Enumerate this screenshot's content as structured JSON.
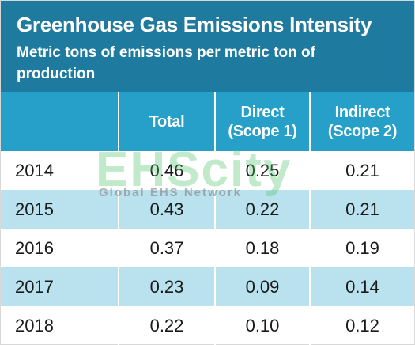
{
  "chart_data": {
    "type": "table",
    "title": "Greenhouse Gas Emissions Intensity",
    "subtitle": "Metric tons of emissions per metric ton of production",
    "columns": [
      {
        "label_lines": []
      },
      {
        "label_lines": [
          "Total"
        ]
      },
      {
        "label_lines": [
          "Direct",
          "(Scope 1)"
        ]
      },
      {
        "label_lines": [
          "Indirect",
          "(Scope 2)"
        ]
      }
    ],
    "rows": [
      {
        "year": "2014",
        "total": "0.46",
        "direct": "0.25",
        "indirect": "0.21"
      },
      {
        "year": "2015",
        "total": "0.43",
        "direct": "0.22",
        "indirect": "0.21"
      },
      {
        "year": "2016",
        "total": "0.37",
        "direct": "0.18",
        "indirect": "0.19"
      },
      {
        "year": "2017",
        "total": "0.23",
        "direct": "0.09",
        "indirect": "0.14"
      },
      {
        "year": "2018",
        "total": "0.22",
        "direct": "0.10",
        "indirect": "0.12"
      }
    ]
  },
  "watermark": {
    "line1": "EHScity",
    "line2": "Global EHS Network"
  },
  "colors": {
    "header_bg": "#1f7a9f",
    "column_header_bg": "#26a0c8",
    "row_shade": "#b9e2ee"
  }
}
